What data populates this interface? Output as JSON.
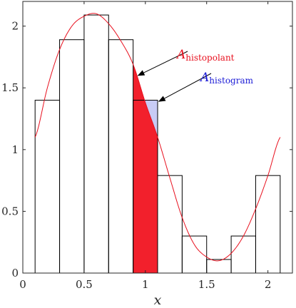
{
  "chart_data": {
    "type": "bar",
    "title": "",
    "xlabel": "x",
    "ylabel": "",
    "xlim": [
      0,
      2.2
    ],
    "ylim": [
      0,
      2.2
    ],
    "grid": false,
    "x_ticks": [
      0,
      0.5,
      1,
      1.5,
      2
    ],
    "x_tick_labels": [
      "0",
      "0.5",
      "1",
      "1.5",
      "2"
    ],
    "y_ticks": [
      0,
      0.5,
      1,
      1.5,
      2
    ],
    "y_tick_labels": [
      "0",
      "0.5",
      "1",
      "1.5",
      "2"
    ],
    "histogram": {
      "bin_edges": [
        0.1,
        0.3,
        0.5,
        0.7,
        0.9,
        1.1,
        1.3,
        1.5,
        1.7,
        1.9,
        2.1
      ],
      "values": [
        1.4,
        1.89,
        2.09,
        1.89,
        1.4,
        0.79,
        0.3,
        0.11,
        0.3,
        0.79
      ]
    },
    "histopolant": {
      "x": [
        0.1,
        0.2,
        0.3,
        0.4,
        0.5,
        0.6,
        0.7,
        0.8,
        0.9,
        1.0,
        1.1,
        1.2,
        1.3,
        1.4,
        1.5,
        1.6,
        1.7,
        1.8,
        1.9,
        2.0,
        2.1
      ],
      "y": [
        1.1,
        1.5,
        1.81,
        2.0,
        2.08,
        2.1,
        2.02,
        1.88,
        1.69,
        1.38,
        1.1,
        0.77,
        0.45,
        0.23,
        0.13,
        0.1,
        0.16,
        0.3,
        0.52,
        0.79,
        1.1
      ],
      "color": "#e8101e"
    },
    "highlight": {
      "x_range": [
        0.9,
        1.1
      ],
      "histopolant_fill": "#f2202c",
      "histogram_fill": "#c8cbf5"
    },
    "annotations": [
      {
        "symbol": "A",
        "subscript": "histopolant",
        "color": "#e8101e",
        "arrow_to": [
          0.94,
          1.6
        ]
      },
      {
        "symbol": "A",
        "subscript": "histogram",
        "color": "#1a1ad6",
        "arrow_to": [
          1.11,
          1.39
        ]
      }
    ]
  }
}
